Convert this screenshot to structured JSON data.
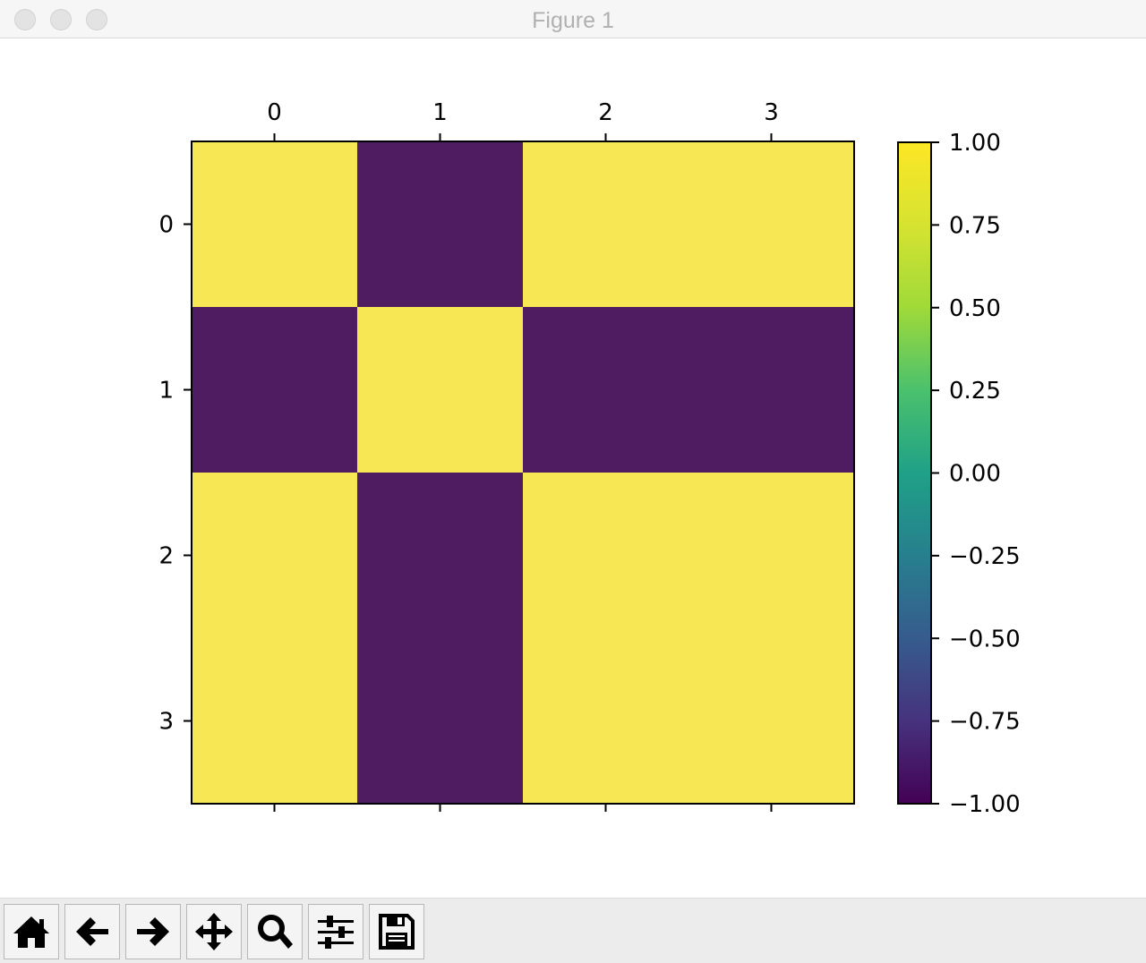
{
  "window": {
    "title": "Figure 1"
  },
  "toolbar": {
    "buttons": [
      {
        "name": "home-button",
        "icon": "home-icon"
      },
      {
        "name": "back-button",
        "icon": "arrow-left-icon"
      },
      {
        "name": "forward-button",
        "icon": "arrow-right-icon"
      },
      {
        "name": "pan-button",
        "icon": "move-icon"
      },
      {
        "name": "zoom-button",
        "icon": "magnifier-icon"
      },
      {
        "name": "configure-subplots-button",
        "icon": "sliders-icon"
      },
      {
        "name": "save-button",
        "icon": "floppy-disk-icon"
      }
    ]
  },
  "chart_data": {
    "type": "heatmap",
    "title": "",
    "xlabel": "",
    "ylabel": "",
    "x_ticks": [
      "0",
      "1",
      "2",
      "3"
    ],
    "y_ticks": [
      "0",
      "1",
      "2",
      "3"
    ],
    "x_tick_position": "top",
    "values": [
      [
        1,
        -1,
        1,
        1
      ],
      [
        -1,
        1,
        -1,
        -1
      ],
      [
        1,
        -1,
        1,
        1
      ],
      [
        1,
        -1,
        1,
        1
      ]
    ],
    "colormap": "viridis",
    "colors": {
      "high": "#f8e755",
      "low": "#4f1c61"
    },
    "colorbar": {
      "range": [
        -1,
        1
      ],
      "ticks": [
        1.0,
        0.75,
        0.5,
        0.25,
        0.0,
        -0.25,
        -0.5,
        -0.75,
        -1.0
      ],
      "tick_labels": [
        "1.00",
        "0.75",
        "0.50",
        "0.25",
        "0.00",
        "−0.25",
        "−0.50",
        "−0.75",
        "−1.00"
      ]
    },
    "grid": false
  }
}
